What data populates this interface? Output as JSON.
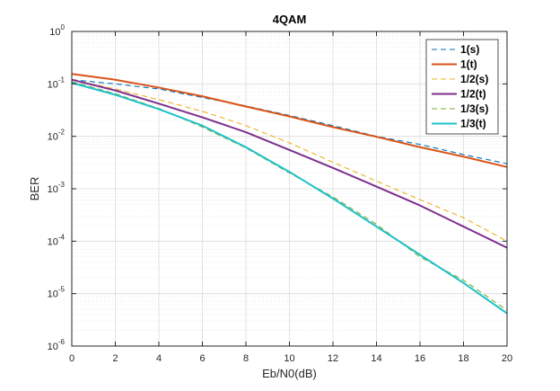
{
  "chart_data": {
    "type": "line",
    "title": "4QAM",
    "xlabel": "Eb/N0(dB)",
    "ylabel": "BER",
    "xlim": [
      0,
      20
    ],
    "ylim": [
      1e-06,
      1
    ],
    "yscale": "log",
    "grid": true,
    "minor_grid": true,
    "legend_position": "top-right",
    "x_ticks": [
      "0",
      "2",
      "4",
      "6",
      "8",
      "10",
      "12",
      "14",
      "16",
      "18",
      "20"
    ],
    "y_ticks": [
      {
        "base": "10",
        "exp": "-6"
      },
      {
        "base": "10",
        "exp": "-5"
      },
      {
        "base": "10",
        "exp": "-4"
      },
      {
        "base": "10",
        "exp": "-3"
      },
      {
        "base": "10",
        "exp": "-2"
      },
      {
        "base": "10",
        "exp": "-1"
      },
      {
        "base": "10",
        "exp": "0"
      }
    ],
    "x": [
      0,
      2,
      4,
      6,
      8,
      10,
      12,
      14,
      16,
      18,
      20
    ],
    "series": [
      {
        "name": "1(s)",
        "color": "#0072BD",
        "style": "dashed",
        "values": [
          0.12,
          0.1,
          0.08,
          0.055,
          0.038,
          0.025,
          0.016,
          0.01,
          0.007,
          0.0045,
          0.003
        ]
      },
      {
        "name": "1(t)",
        "color": "#D95319",
        "style": "solid",
        "values": [
          0.155,
          0.12,
          0.085,
          0.058,
          0.037,
          0.024,
          0.015,
          0.0098,
          0.0062,
          0.0041,
          0.0026
        ]
      },
      {
        "name": "1/2(s)",
        "color": "#EDB120",
        "style": "dashed",
        "values": [
          0.12,
          0.08,
          0.05,
          0.03,
          0.016,
          0.0075,
          0.0032,
          0.0014,
          0.00062,
          0.00028,
          0.0001
        ]
      },
      {
        "name": "1/2(t)",
        "color": "#7E2F8E",
        "style": "solid",
        "values": [
          0.12,
          0.075,
          0.042,
          0.023,
          0.012,
          0.0055,
          0.0025,
          0.0011,
          0.00048,
          0.00019,
          7.5e-05
        ]
      },
      {
        "name": "1/3(s)",
        "color": "#77AC30",
        "style": "dashed",
        "values": [
          0.11,
          0.065,
          0.034,
          0.015,
          0.006,
          0.002,
          0.0007,
          0.00021,
          5e-05,
          1.8e-05,
          4.8e-06
        ]
      },
      {
        "name": "1/3(t)",
        "color": "#1FC0C8",
        "style": "solid",
        "values": [
          0.105,
          0.062,
          0.033,
          0.016,
          0.0062,
          0.0021,
          0.00065,
          0.00019,
          5.5e-05,
          1.6e-05,
          4.2e-06
        ]
      }
    ]
  }
}
